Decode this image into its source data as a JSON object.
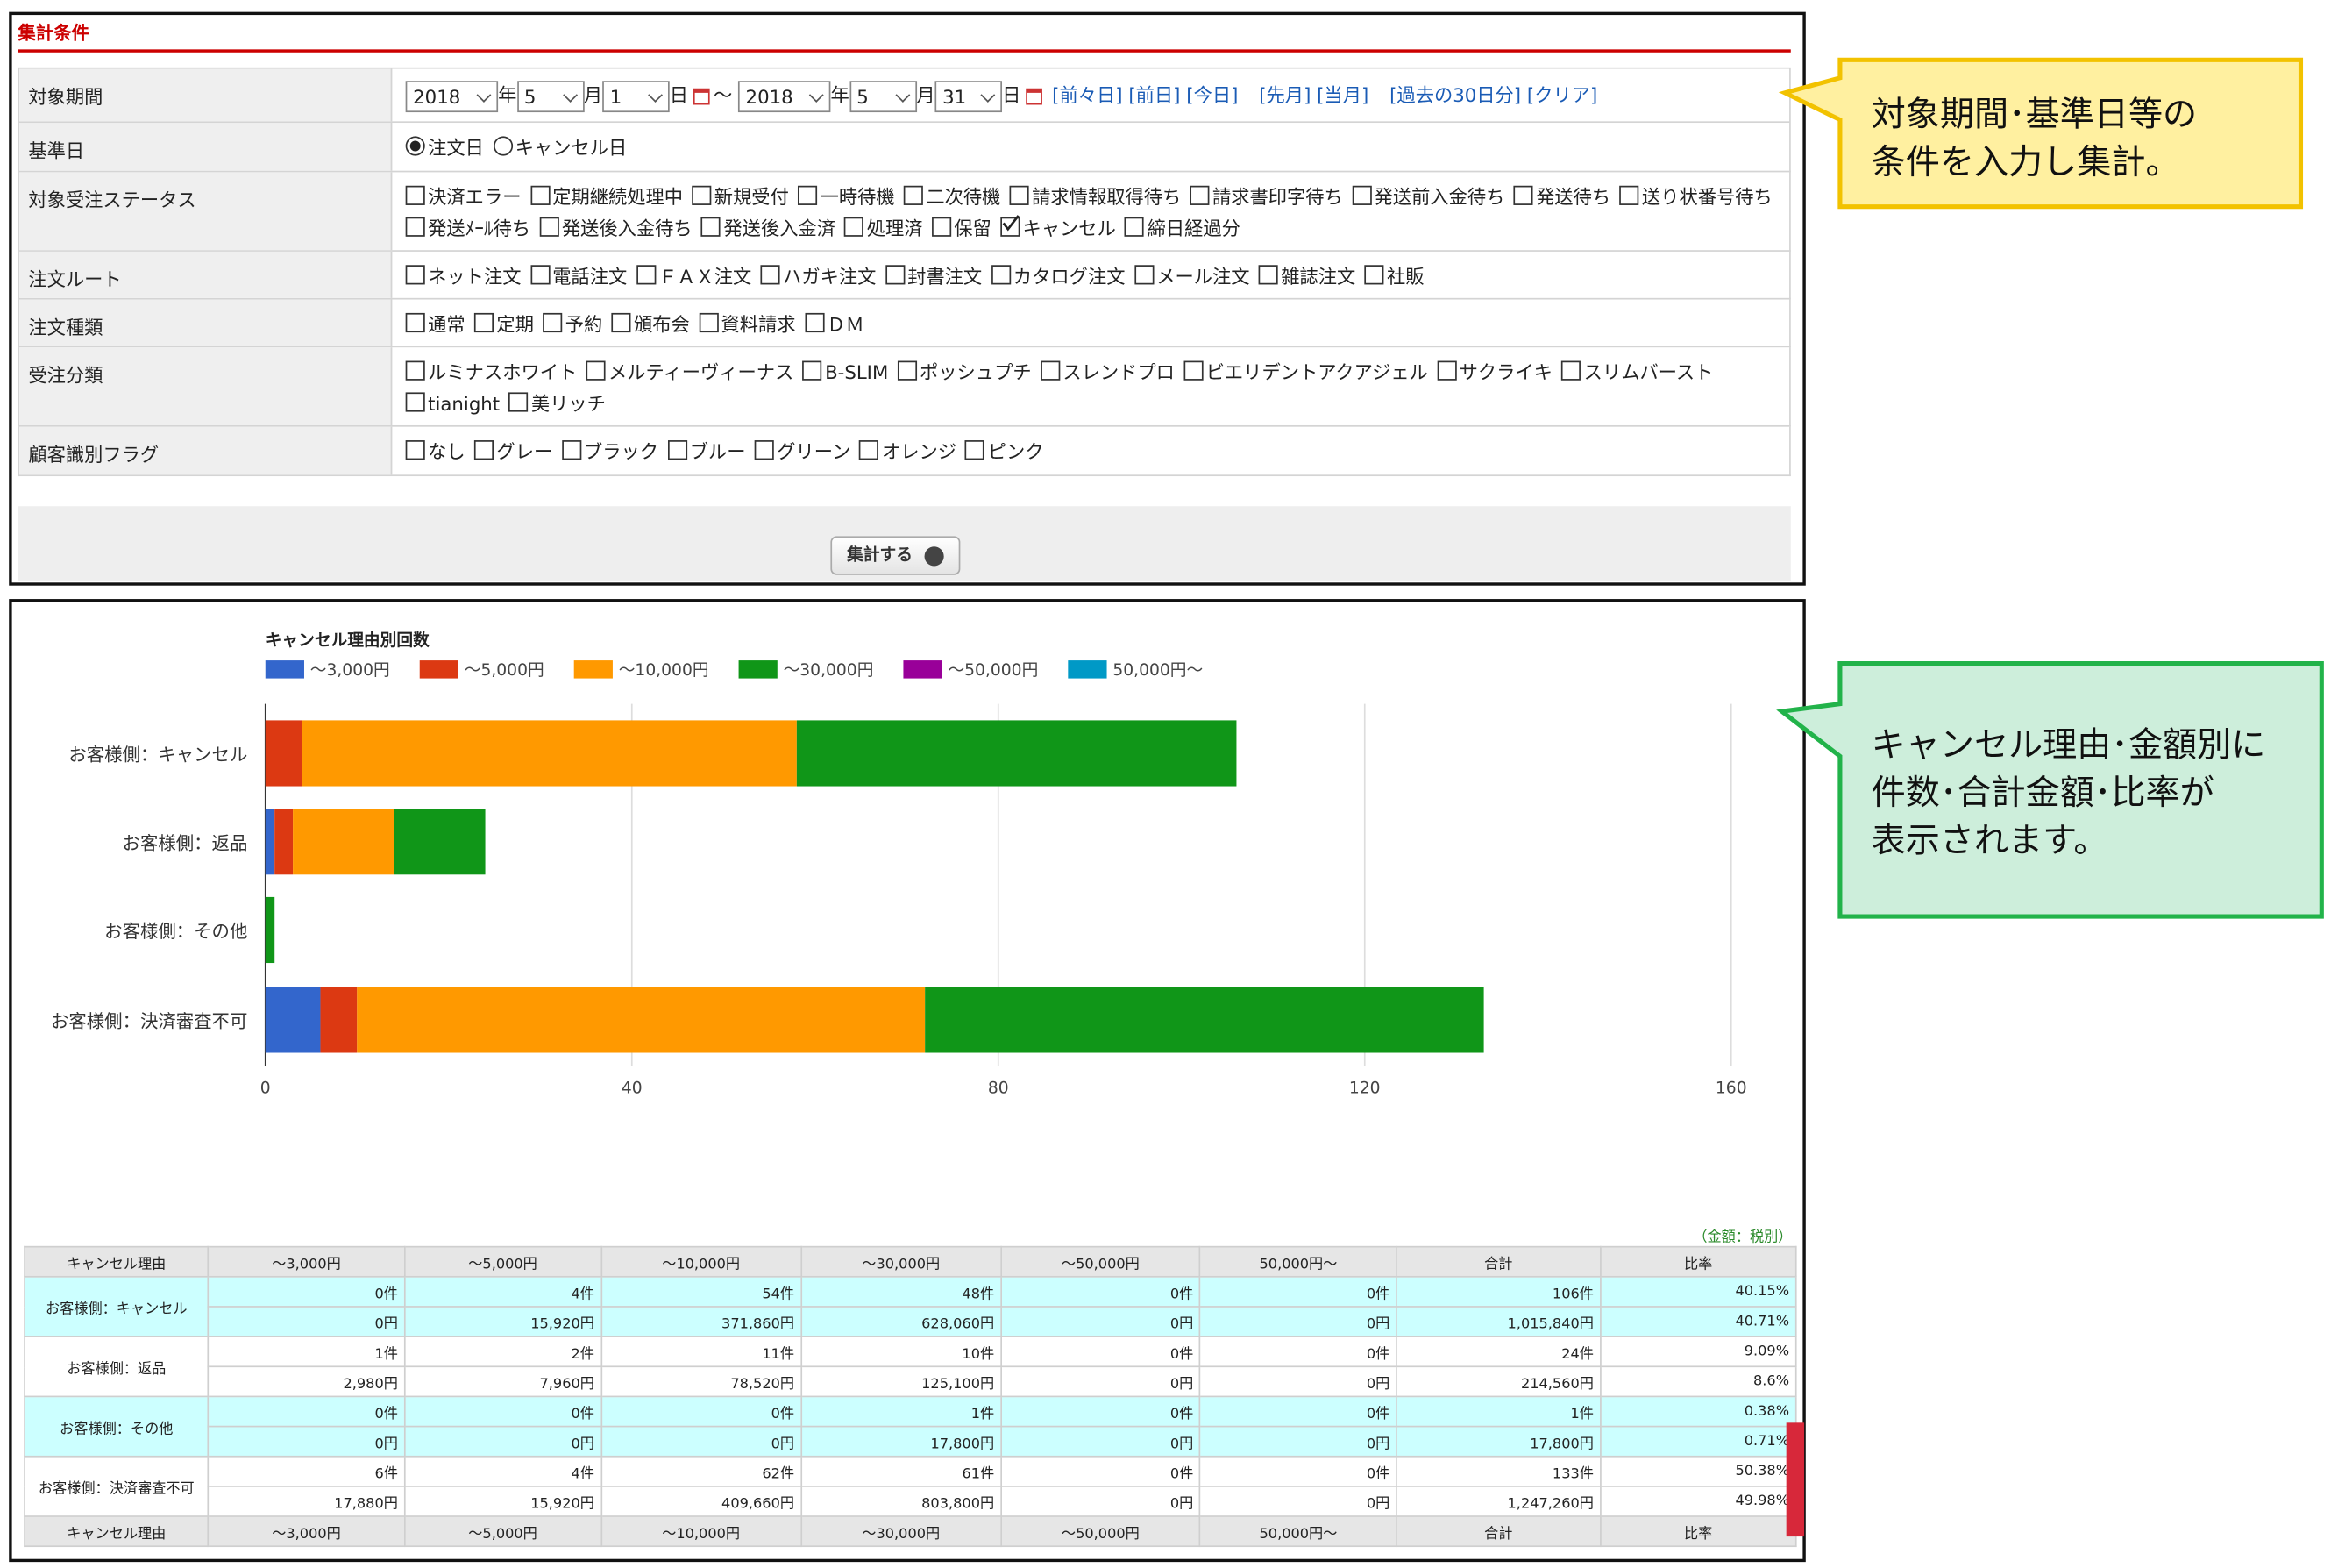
{
  "form": {
    "title": "集計条件",
    "rows": [
      {
        "label": "対象期間",
        "period": {
          "from": [
            {
              "value": "2018",
              "suffix": "年"
            },
            {
              "value": "5",
              "suffix": "月"
            },
            {
              "value": "1",
              "suffix": "日"
            }
          ],
          "separator": "～",
          "to": [
            {
              "value": "2018",
              "suffix": "年"
            },
            {
              "value": "5",
              "suffix": "月"
            },
            {
              "value": "31",
              "suffix": "日"
            }
          ],
          "links": [
            "[前々日]",
            "[前日]",
            "[今日]",
            "[先月]",
            "[当月]",
            "[過去の30日分]",
            "[クリア]"
          ]
        }
      },
      {
        "label": "基準日",
        "radios": [
          {
            "label": "注文日",
            "checked": true
          },
          {
            "label": "キャンセル日",
            "checked": false
          }
        ]
      },
      {
        "label": "対象受注ステータス",
        "checkboxes": [
          {
            "label": "決済エラー",
            "checked": false
          },
          {
            "label": "定期継続処理中",
            "checked": false
          },
          {
            "label": "新規受付",
            "checked": false
          },
          {
            "label": "一時待機",
            "checked": false
          },
          {
            "label": "二次待機",
            "checked": false
          },
          {
            "label": "請求情報取得待ち",
            "checked": false
          },
          {
            "label": "請求書印字待ち",
            "checked": false
          },
          {
            "label": "発送前入金待ち",
            "checked": false
          },
          {
            "label": "発送待ち",
            "checked": false
          },
          {
            "label": "送り状番号待ち",
            "checked": false
          },
          {
            "label": "発送ﾒｰﾙ待ち",
            "checked": false
          },
          {
            "label": "発送後入金待ち",
            "checked": false
          },
          {
            "label": "発送後入金済",
            "checked": false
          },
          {
            "label": "処理済",
            "checked": false
          },
          {
            "label": "保留",
            "checked": false
          },
          {
            "label": "キャンセル",
            "checked": true
          },
          {
            "label": "締日経過分",
            "checked": false
          }
        ]
      },
      {
        "label": "注文ルート",
        "checkboxes": [
          {
            "label": "ネット注文",
            "checked": false
          },
          {
            "label": "電話注文",
            "checked": false
          },
          {
            "label": "ＦＡＸ注文",
            "checked": false
          },
          {
            "label": "ハガキ注文",
            "checked": false
          },
          {
            "label": "封書注文",
            "checked": false
          },
          {
            "label": "カタログ注文",
            "checked": false
          },
          {
            "label": "メール注文",
            "checked": false
          },
          {
            "label": "雑誌注文",
            "checked": false
          },
          {
            "label": "社販",
            "checked": false
          }
        ]
      },
      {
        "label": "注文種類",
        "checkboxes": [
          {
            "label": "通常",
            "checked": false
          },
          {
            "label": "定期",
            "checked": false
          },
          {
            "label": "予約",
            "checked": false
          },
          {
            "label": "頒布会",
            "checked": false
          },
          {
            "label": "資料請求",
            "checked": false
          },
          {
            "label": "ＤＭ",
            "checked": false
          }
        ]
      },
      {
        "label": "受注分類",
        "checkboxes": [
          {
            "label": "ルミナスホワイト",
            "checked": false
          },
          {
            "label": "メルティーヴィーナス",
            "checked": false
          },
          {
            "label": "B-SLIM",
            "checked": false
          },
          {
            "label": "ポッシュプチ",
            "checked": false
          },
          {
            "label": "スレンドプロ",
            "checked": false
          },
          {
            "label": "ビエリデントアクアジェル",
            "checked": false
          },
          {
            "label": "サクライキ",
            "checked": false
          },
          {
            "label": "スリムバースト",
            "checked": false
          },
          {
            "label": "tianight",
            "checked": false
          },
          {
            "label": "美リッチ",
            "checked": false
          }
        ]
      },
      {
        "label": "顧客識別フラグ",
        "checkboxes": [
          {
            "label": "なし",
            "checked": false
          },
          {
            "label": "グレー",
            "checked": false
          },
          {
            "label": "ブラック",
            "checked": false
          },
          {
            "label": "ブルー",
            "checked": false
          },
          {
            "label": "グリーン",
            "checked": false
          },
          {
            "label": "オレンジ",
            "checked": false
          },
          {
            "label": "ピンク",
            "checked": false
          }
        ]
      }
    ],
    "button": "集計する"
  },
  "chart_data": {
    "type": "stacked-barh",
    "title": "キャンセル理由別回数",
    "categories": [
      "お客様側：キャンセル",
      "お客様側：返品",
      "お客様側：その他",
      "お客様側：決済審査不可"
    ],
    "series": [
      {
        "name": "～3,000円",
        "color": "#3366cc",
        "values": [
          0,
          1,
          0,
          6
        ]
      },
      {
        "name": "～5,000円",
        "color": "#dc3912",
        "values": [
          4,
          2,
          0,
          4
        ]
      },
      {
        "name": "～10,000円",
        "color": "#ff9900",
        "values": [
          54,
          11,
          0,
          62
        ]
      },
      {
        "name": "～30,000円",
        "color": "#109618",
        "values": [
          48,
          10,
          1,
          61
        ]
      },
      {
        "name": "～50,000円",
        "color": "#990099",
        "values": [
          0,
          0,
          0,
          0
        ]
      },
      {
        "name": "50,000円～",
        "color": "#0099c6",
        "values": [
          0,
          0,
          0,
          0
        ]
      }
    ],
    "xlim": [
      0,
      160
    ],
    "xticks": [
      0,
      40,
      80,
      120,
      160
    ],
    "grid": true,
    "legend": "top"
  },
  "table": {
    "note": "（金額：税別）",
    "header": [
      "キャンセル理由",
      "～3,000円",
      "～5,000円",
      "～10,000円",
      "～30,000円",
      "～50,000円",
      "50,000円～",
      "合計",
      "比率"
    ],
    "rows": [
      {
        "reason": "お客様側：キャンセル",
        "counts": [
          "0件",
          "4件",
          "54件",
          "48件",
          "0件",
          "0件",
          "106件",
          "40.15%"
        ],
        "amounts": [
          "0円",
          "15,920円",
          "371,860円",
          "628,060円",
          "0円",
          "0円",
          "1,015,840円",
          "40.71%"
        ]
      },
      {
        "reason": "お客様側：返品",
        "counts": [
          "1件",
          "2件",
          "11件",
          "10件",
          "0件",
          "0件",
          "24件",
          "9.09%"
        ],
        "amounts": [
          "2,980円",
          "7,960円",
          "78,520円",
          "125,100円",
          "0円",
          "0円",
          "214,560円",
          "8.6%"
        ]
      },
      {
        "reason": "お客様側：その他",
        "counts": [
          "0件",
          "0件",
          "0件",
          "1件",
          "0件",
          "0件",
          "1件",
          "0.38%"
        ],
        "amounts": [
          "0円",
          "0円",
          "0円",
          "17,800円",
          "0円",
          "0円",
          "17,800円",
          "0.71%"
        ]
      },
      {
        "reason": "お客様側：決済審査不可",
        "counts": [
          "6件",
          "4件",
          "62件",
          "61件",
          "0件",
          "0件",
          "133件",
          "50.38%"
        ],
        "amounts": [
          "17,880円",
          "15,920円",
          "409,660円",
          "803,800円",
          "0円",
          "0円",
          "1,247,260円",
          "49.98%"
        ]
      }
    ]
  },
  "callouts": [
    {
      "lines": [
        "対象期間･基準日等の",
        "条件を入力し集計。"
      ]
    },
    {
      "lines": [
        "キャンセル理由･金額別に",
        "件数･合計金額･比率が",
        "表示されます。"
      ]
    }
  ]
}
